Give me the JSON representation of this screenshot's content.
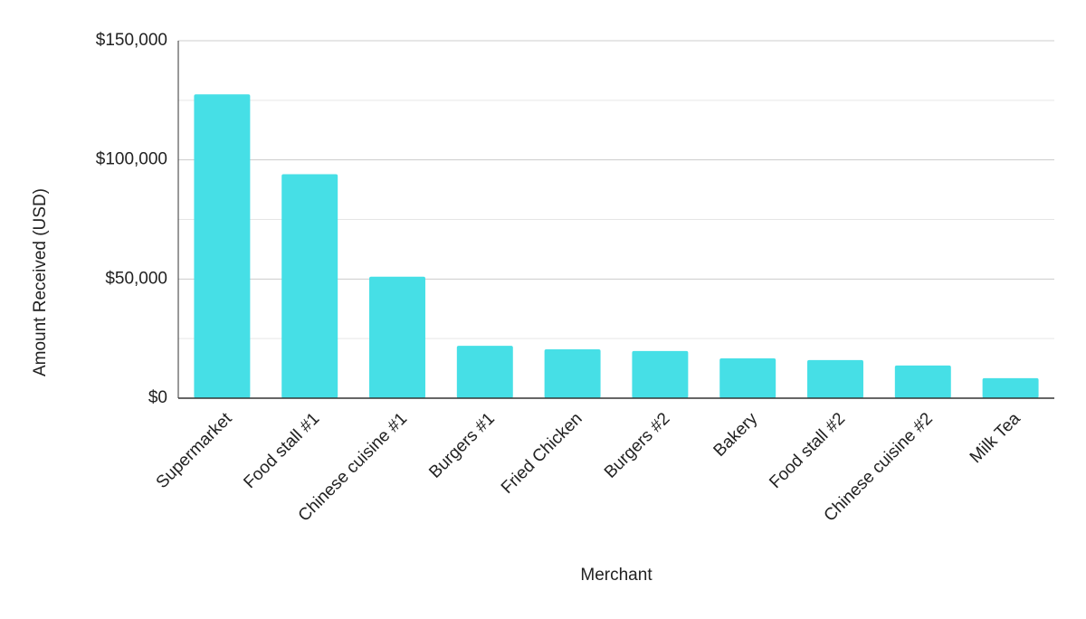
{
  "chart_data": {
    "type": "bar",
    "x_label": "Merchant",
    "y_label": "Amount Received (USD)",
    "categories": [
      "Supermarket",
      "Food stall #1",
      "Chinese cuisine #1",
      "Burgers #1",
      "Fried Chicken",
      "Burgers #2",
      "Bakery",
      "Food stall #2",
      "Chinese cuisine #2",
      "Milk Tea"
    ],
    "values": [
      127500,
      94000,
      51000,
      22000,
      20500,
      19800,
      16700,
      16000,
      13700,
      8400
    ],
    "color": "#46dfe6",
    "ylim": [
      0,
      150000
    ],
    "yticks": [
      {
        "value": 0,
        "label": "$0"
      },
      {
        "value": 50000,
        "label": "$50,000"
      },
      {
        "value": 100000,
        "label": "$100,000"
      },
      {
        "value": 150000,
        "label": "$150,000"
      }
    ],
    "minor_yticks": [
      25000,
      75000,
      125000
    ],
    "grid": true
  }
}
